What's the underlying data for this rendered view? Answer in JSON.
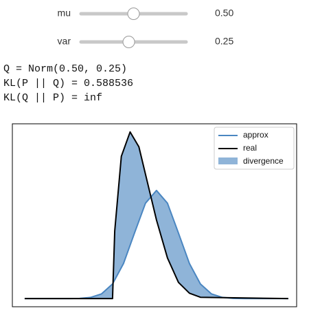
{
  "sliders": [
    {
      "name": "mu",
      "value": 0.5,
      "value_label": "0.50",
      "min": -1,
      "max": 2
    },
    {
      "name": "var",
      "value": 0.25,
      "value_label": "0.25",
      "min": 0,
      "max": 0.55
    }
  ],
  "output": [
    "Q = Norm(0.50, 0.25)",
    "KL(P || Q) = 0.588536",
    "KL(Q || P) = inf"
  ],
  "chart_data": {
    "type": "line",
    "xlim": [
      -2.78,
      3.69
    ],
    "ylim": [
      -0.06,
      1.29
    ],
    "fill_name": "divergence",
    "fill_color": "#8fb4d8",
    "series": [
      {
        "name": "approx",
        "color": "#4a86c1",
        "x": [
          -2.5,
          -2.25,
          -2,
          -1.75,
          -1.5,
          -1.25,
          -1,
          -0.75,
          -0.5,
          -0.25,
          0,
          0.25,
          0.5,
          0.75,
          1,
          1.25,
          1.5,
          1.75,
          2,
          2.25,
          2.5,
          2.75,
          3,
          3.25,
          3.5
        ],
        "values": [
          0,
          0,
          0,
          0,
          0.0003,
          0.0017,
          0.0089,
          0.035,
          0.108,
          0.259,
          0.4839,
          0.7041,
          0.7979,
          0.7041,
          0.4839,
          0.259,
          0.108,
          0.035,
          0.0089,
          0.0017,
          0.0003,
          0,
          0,
          0,
          0
        ]
      },
      {
        "name": "real",
        "color": "#000000",
        "x": [
          -2.5,
          -0.5,
          -0.45,
          -0.3,
          -0.1,
          0.1,
          0.3,
          0.5,
          0.75,
          1,
          1.25,
          1.5,
          3.5
        ],
        "values": [
          0,
          0,
          0.5,
          1.05,
          1.23,
          1.12,
          0.85,
          0.58,
          0.3,
          0.12,
          0.04,
          0.01,
          0
        ]
      }
    ]
  }
}
